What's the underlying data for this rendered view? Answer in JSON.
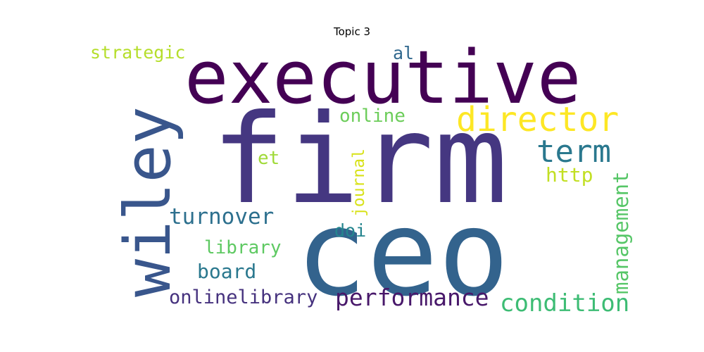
{
  "chart_data": {
    "type": "wordcloud",
    "title": "Topic 3",
    "words": [
      {
        "text": "firm",
        "weight": 1.0,
        "color": "#453781"
      },
      {
        "text": "ceo",
        "weight": 0.97,
        "color": "#33638d"
      },
      {
        "text": "executive",
        "weight": 0.62,
        "color": "#440154"
      },
      {
        "text": "wiley",
        "weight": 0.55,
        "color": "#39568c"
      },
      {
        "text": "director",
        "weight": 0.34,
        "color": "#fde725"
      },
      {
        "text": "term",
        "weight": 0.3,
        "color": "#2a788e"
      },
      {
        "text": "condition",
        "weight": 0.23,
        "color": "#3dbc74"
      },
      {
        "text": "performance",
        "weight": 0.23,
        "color": "#48186a"
      },
      {
        "text": "management",
        "weight": 0.2,
        "color": "#56c667"
      },
      {
        "text": "turnover",
        "weight": 0.22,
        "color": "#2d708e"
      },
      {
        "text": "onlinelibrary",
        "weight": 0.2,
        "color": "#46327e"
      },
      {
        "text": "library",
        "weight": 0.19,
        "color": "#5ec962"
      },
      {
        "text": "board",
        "weight": 0.19,
        "color": "#2a788e"
      },
      {
        "text": "http",
        "weight": 0.19,
        "color": "#c2df23"
      },
      {
        "text": "online",
        "weight": 0.18,
        "color": "#6ccd5a"
      },
      {
        "text": "doi",
        "weight": 0.17,
        "color": "#25858e"
      },
      {
        "text": "strategic",
        "weight": 0.17,
        "color": "#b5de2b"
      },
      {
        "text": "al",
        "weight": 0.17,
        "color": "#31688e"
      },
      {
        "text": "et",
        "weight": 0.17,
        "color": "#a0da39"
      },
      {
        "text": "journal",
        "weight": 0.15,
        "color": "#d8e219"
      }
    ]
  }
}
